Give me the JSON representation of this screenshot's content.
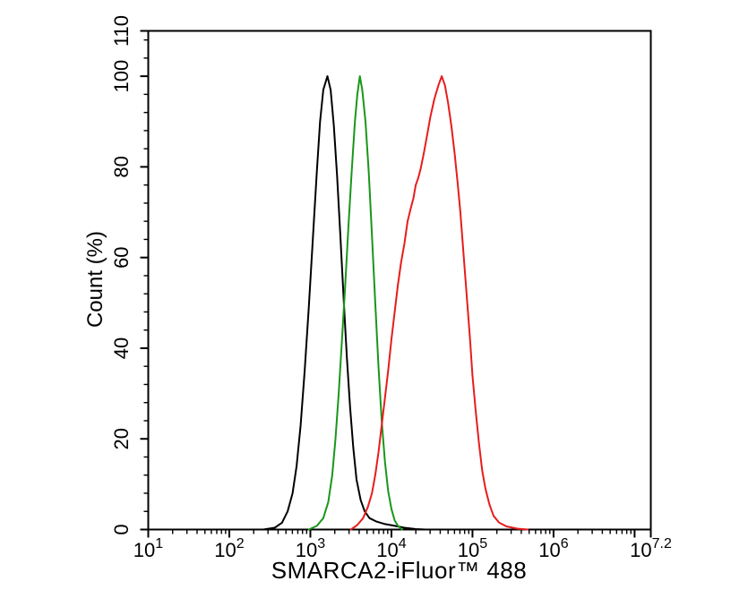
{
  "figure": {
    "background": "#ffffff",
    "axis_color": "#000000",
    "text_color": "#000000"
  },
  "chart_data": {
    "type": "line",
    "subtype": "flow-cytometry-overlay-histogram",
    "title": "",
    "xlabel": "SMARCA2-iFluor™ 488",
    "ylabel": "Count  (%)",
    "x_scale": "log10",
    "x_range_log": [
      1,
      7.2
    ],
    "ylim": [
      0,
      110
    ],
    "grid": false,
    "legend": null,
    "y_major_ticks": [
      {
        "label": "0",
        "value": 0
      },
      {
        "label": "20",
        "value": 20
      },
      {
        "label": "40",
        "value": 40
      },
      {
        "label": "60",
        "value": 60
      },
      {
        "label": "80",
        "value": 80
      },
      {
        "label": "100",
        "value": 100
      },
      {
        "label": "110",
        "value": 110
      }
    ],
    "y_minor_step": 4,
    "x_major_ticks_log": [
      1,
      2,
      3,
      4,
      5,
      6,
      7,
      7.2
    ],
    "x_tick_labels": [
      {
        "base": "10",
        "exp": "1",
        "log": 1
      },
      {
        "base": "10",
        "exp": "2",
        "log": 2
      },
      {
        "base": "10",
        "exp": "3",
        "log": 3
      },
      {
        "base": "10",
        "exp": "4",
        "log": 4
      },
      {
        "base": "10",
        "exp": "5",
        "log": 5
      },
      {
        "base": "10",
        "exp": "6",
        "log": 6
      },
      {
        "base": "10",
        "exp": "7.2",
        "log": 7.2
      }
    ],
    "series": [
      {
        "name": "black",
        "color": "#000000",
        "peak_x_approx": 1600,
        "peak_y": 100,
        "points": [
          [
            2.42,
            0
          ],
          [
            2.56,
            0.4
          ],
          [
            2.65,
            1.5
          ],
          [
            2.72,
            4
          ],
          [
            2.78,
            8
          ],
          [
            2.83,
            14
          ],
          [
            2.88,
            23
          ],
          [
            2.93,
            35
          ],
          [
            2.98,
            49
          ],
          [
            3.03,
            64
          ],
          [
            3.08,
            79
          ],
          [
            3.12,
            90
          ],
          [
            3.16,
            97
          ],
          [
            3.21,
            100
          ],
          [
            3.25,
            97
          ],
          [
            3.29,
            89
          ],
          [
            3.33,
            78
          ],
          [
            3.37,
            65
          ],
          [
            3.41,
            51
          ],
          [
            3.45,
            38
          ],
          [
            3.49,
            27
          ],
          [
            3.53,
            18
          ],
          [
            3.57,
            11
          ],
          [
            3.62,
            6.5
          ],
          [
            3.67,
            4
          ],
          [
            3.73,
            2.5
          ],
          [
            3.81,
            1.8
          ],
          [
            3.92,
            1.2
          ],
          [
            4.04,
            0.8
          ],
          [
            4.16,
            0.4
          ],
          [
            4.3,
            0.1
          ],
          [
            4.42,
            0
          ]
        ]
      },
      {
        "name": "green",
        "color": "#1a961a",
        "peak_x_approx": 4100,
        "peak_y": 100,
        "points": [
          [
            2.98,
            0
          ],
          [
            3.08,
            0.8
          ],
          [
            3.16,
            2.5
          ],
          [
            3.22,
            6
          ],
          [
            3.27,
            12
          ],
          [
            3.31,
            20
          ],
          [
            3.35,
            30
          ],
          [
            3.39,
            42
          ],
          [
            3.43,
            54
          ],
          [
            3.47,
            67
          ],
          [
            3.51,
            79
          ],
          [
            3.55,
            90
          ],
          [
            3.58,
            96
          ],
          [
            3.61,
            100
          ],
          [
            3.64,
            97
          ],
          [
            3.68,
            90
          ],
          [
            3.72,
            79
          ],
          [
            3.76,
            65
          ],
          [
            3.8,
            50
          ],
          [
            3.84,
            36
          ],
          [
            3.88,
            24
          ],
          [
            3.92,
            15
          ],
          [
            3.96,
            8.5
          ],
          [
            4.0,
            4.5
          ],
          [
            4.04,
            2
          ],
          [
            4.08,
            0.8
          ],
          [
            4.13,
            0
          ]
        ]
      },
      {
        "name": "red",
        "color": "#e81c1c",
        "peak_x_approx": 42000,
        "peak_y": 100,
        "points": [
          [
            3.5,
            0
          ],
          [
            3.58,
            1
          ],
          [
            3.65,
            2.5
          ],
          [
            3.71,
            5
          ],
          [
            3.76,
            8
          ],
          [
            3.8,
            12
          ],
          [
            3.84,
            17
          ],
          [
            3.88,
            23
          ],
          [
            3.92,
            29
          ],
          [
            3.96,
            35
          ],
          [
            4.0,
            42
          ],
          [
            4.04,
            48
          ],
          [
            4.08,
            54
          ],
          [
            4.12,
            59
          ],
          [
            4.16,
            63
          ],
          [
            4.2,
            68
          ],
          [
            4.24,
            71
          ],
          [
            4.27,
            73
          ],
          [
            4.3,
            76
          ],
          [
            4.33,
            77.5
          ],
          [
            4.36,
            79.5
          ],
          [
            4.4,
            83
          ],
          [
            4.44,
            87
          ],
          [
            4.48,
            91
          ],
          [
            4.53,
            95
          ],
          [
            4.58,
            98
          ],
          [
            4.62,
            100
          ],
          [
            4.66,
            98
          ],
          [
            4.7,
            94
          ],
          [
            4.74,
            89
          ],
          [
            4.78,
            83
          ],
          [
            4.82,
            76
          ],
          [
            4.85,
            70
          ],
          [
            4.88,
            63
          ],
          [
            4.91,
            56
          ],
          [
            4.94,
            49
          ],
          [
            4.97,
            42
          ],
          [
            5.0,
            34
          ],
          [
            5.04,
            26
          ],
          [
            5.08,
            19
          ],
          [
            5.12,
            13
          ],
          [
            5.16,
            9
          ],
          [
            5.21,
            5.5
          ],
          [
            5.26,
            3
          ],
          [
            5.33,
            1.5
          ],
          [
            5.42,
            0.7
          ],
          [
            5.55,
            0.2
          ],
          [
            5.68,
            0
          ]
        ]
      }
    ]
  }
}
